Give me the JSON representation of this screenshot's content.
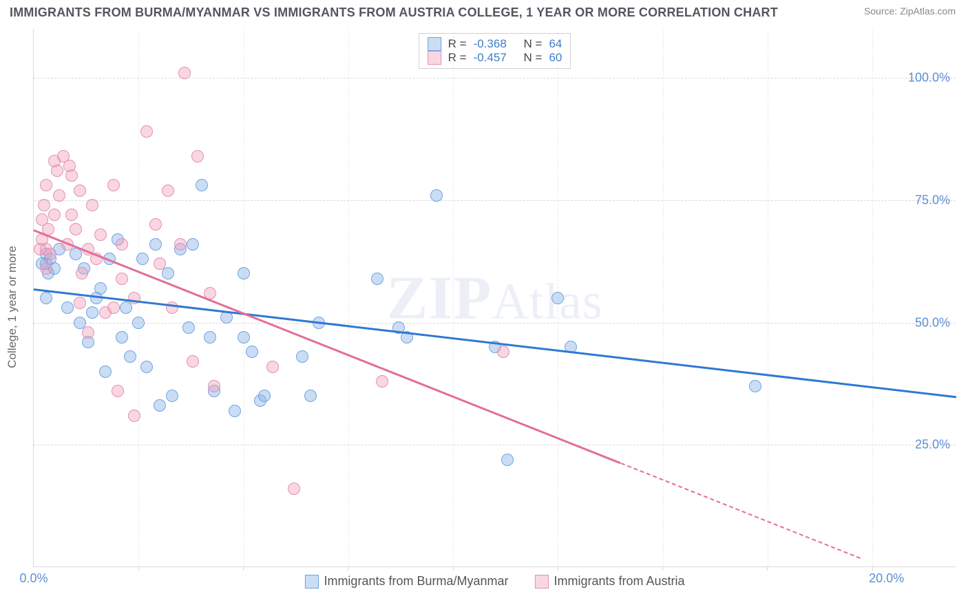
{
  "title": "IMMIGRANTS FROM BURMA/MYANMAR VS IMMIGRANTS FROM AUSTRIA COLLEGE, 1 YEAR OR MORE CORRELATION CHART",
  "source": "Source: ZipAtlas.com",
  "ylabel": "College, 1 year or more",
  "watermark_a": "ZIP",
  "watermark_b": "Atlas",
  "chart": {
    "type": "scatter",
    "xlim": [
      0,
      22
    ],
    "ylim": [
      0,
      110
    ],
    "xtick_at": 0,
    "xtick_label_min": "0.0%",
    "xtick_right_at": 20,
    "xtick_label_max": "20.0%",
    "minor_x_ticks": [
      2.5,
      5,
      7.5,
      10,
      12.5,
      15,
      17.5,
      20
    ],
    "yticks": [
      25,
      50,
      75,
      100
    ],
    "ytick_labels": [
      "25.0%",
      "50.0%",
      "75.0%",
      "100.0%"
    ],
    "grid_color": "#d9d9d9",
    "background": "#ffffff",
    "series": [
      {
        "name": "Immigrants from Burma/Myanmar",
        "color_fill": "rgba(140,180,230,0.45)",
        "color_stroke": "#6fa3e0",
        "marker_radius": 9,
        "R": "-0.368",
        "N": "64",
        "regression": {
          "x1": 0,
          "y1": 57,
          "x2": 22,
          "y2": 35,
          "extrap_after_x": null,
          "color": "#2f78d4"
        },
        "points": [
          [
            0.3,
            64
          ],
          [
            0.3,
            62
          ],
          [
            0.4,
            63
          ],
          [
            0.35,
            60
          ],
          [
            0.2,
            62
          ],
          [
            0.5,
            61
          ],
          [
            0.6,
            65
          ],
          [
            0.3,
            55
          ],
          [
            0.8,
            53
          ],
          [
            1.0,
            64
          ],
          [
            1.2,
            61
          ],
          [
            1.1,
            50
          ],
          [
            1.4,
            52
          ],
          [
            1.5,
            55
          ],
          [
            1.6,
            57
          ],
          [
            1.8,
            63
          ],
          [
            1.3,
            46
          ],
          [
            1.7,
            40
          ],
          [
            2.0,
            67
          ],
          [
            2.2,
            53
          ],
          [
            2.1,
            47
          ],
          [
            2.3,
            43
          ],
          [
            2.5,
            50
          ],
          [
            2.6,
            63
          ],
          [
            2.7,
            41
          ],
          [
            2.9,
            66
          ],
          [
            3.0,
            33
          ],
          [
            3.2,
            60
          ],
          [
            3.3,
            35
          ],
          [
            3.5,
            65
          ],
          [
            3.8,
            66
          ],
          [
            3.7,
            49
          ],
          [
            4.0,
            78
          ],
          [
            4.2,
            47
          ],
          [
            4.3,
            36
          ],
          [
            4.6,
            51
          ],
          [
            4.8,
            32
          ],
          [
            5.0,
            60
          ],
          [
            5.0,
            47
          ],
          [
            5.2,
            44
          ],
          [
            5.4,
            34
          ],
          [
            5.5,
            35
          ],
          [
            6.4,
            43
          ],
          [
            6.6,
            35
          ],
          [
            6.8,
            50
          ],
          [
            8.2,
            59
          ],
          [
            8.7,
            49
          ],
          [
            8.9,
            47
          ],
          [
            9.6,
            76
          ],
          [
            11.0,
            45
          ],
          [
            11.3,
            22
          ],
          [
            12.5,
            55
          ],
          [
            12.8,
            45
          ],
          [
            17.2,
            37
          ]
        ]
      },
      {
        "name": "Immigrants from Austria",
        "color_fill": "rgba(240,160,185,0.42)",
        "color_stroke": "#e48fb0",
        "marker_radius": 9,
        "R": "-0.457",
        "N": "60",
        "regression": {
          "x1": 0,
          "y1": 69,
          "x2": 19.7,
          "y2": 2,
          "extrap_after_x": 14,
          "color": "#e46d98"
        },
        "points": [
          [
            0.2,
            71
          ],
          [
            0.2,
            67
          ],
          [
            0.25,
            74
          ],
          [
            0.3,
            65
          ],
          [
            0.35,
            69
          ],
          [
            0.4,
            64
          ],
          [
            0.15,
            65
          ],
          [
            0.3,
            78
          ],
          [
            0.3,
            61
          ],
          [
            0.5,
            83
          ],
          [
            0.55,
            81
          ],
          [
            0.5,
            72
          ],
          [
            0.6,
            76
          ],
          [
            0.7,
            84
          ],
          [
            0.8,
            66
          ],
          [
            0.85,
            82
          ],
          [
            0.9,
            80
          ],
          [
            0.9,
            72
          ],
          [
            1.0,
            69
          ],
          [
            1.1,
            77
          ],
          [
            1.15,
            60
          ],
          [
            1.1,
            54
          ],
          [
            1.3,
            48
          ],
          [
            1.3,
            65
          ],
          [
            1.4,
            74
          ],
          [
            1.5,
            63
          ],
          [
            1.6,
            68
          ],
          [
            1.7,
            52
          ],
          [
            1.9,
            78
          ],
          [
            1.9,
            53
          ],
          [
            2.0,
            36
          ],
          [
            2.1,
            59
          ],
          [
            2.1,
            66
          ],
          [
            2.4,
            55
          ],
          [
            2.4,
            31
          ],
          [
            2.7,
            89
          ],
          [
            2.9,
            70
          ],
          [
            3.0,
            62
          ],
          [
            3.2,
            77
          ],
          [
            3.3,
            53
          ],
          [
            3.5,
            66
          ],
          [
            3.6,
            101
          ],
          [
            3.8,
            42
          ],
          [
            3.9,
            84
          ],
          [
            4.2,
            56
          ],
          [
            4.3,
            37
          ],
          [
            5.7,
            41
          ],
          [
            6.2,
            16
          ],
          [
            8.3,
            38
          ],
          [
            11.2,
            44
          ]
        ]
      }
    ],
    "stats_box_labels": {
      "R_label": "R =",
      "N_label": "N ="
    },
    "legend_swatch_size": 20
  }
}
